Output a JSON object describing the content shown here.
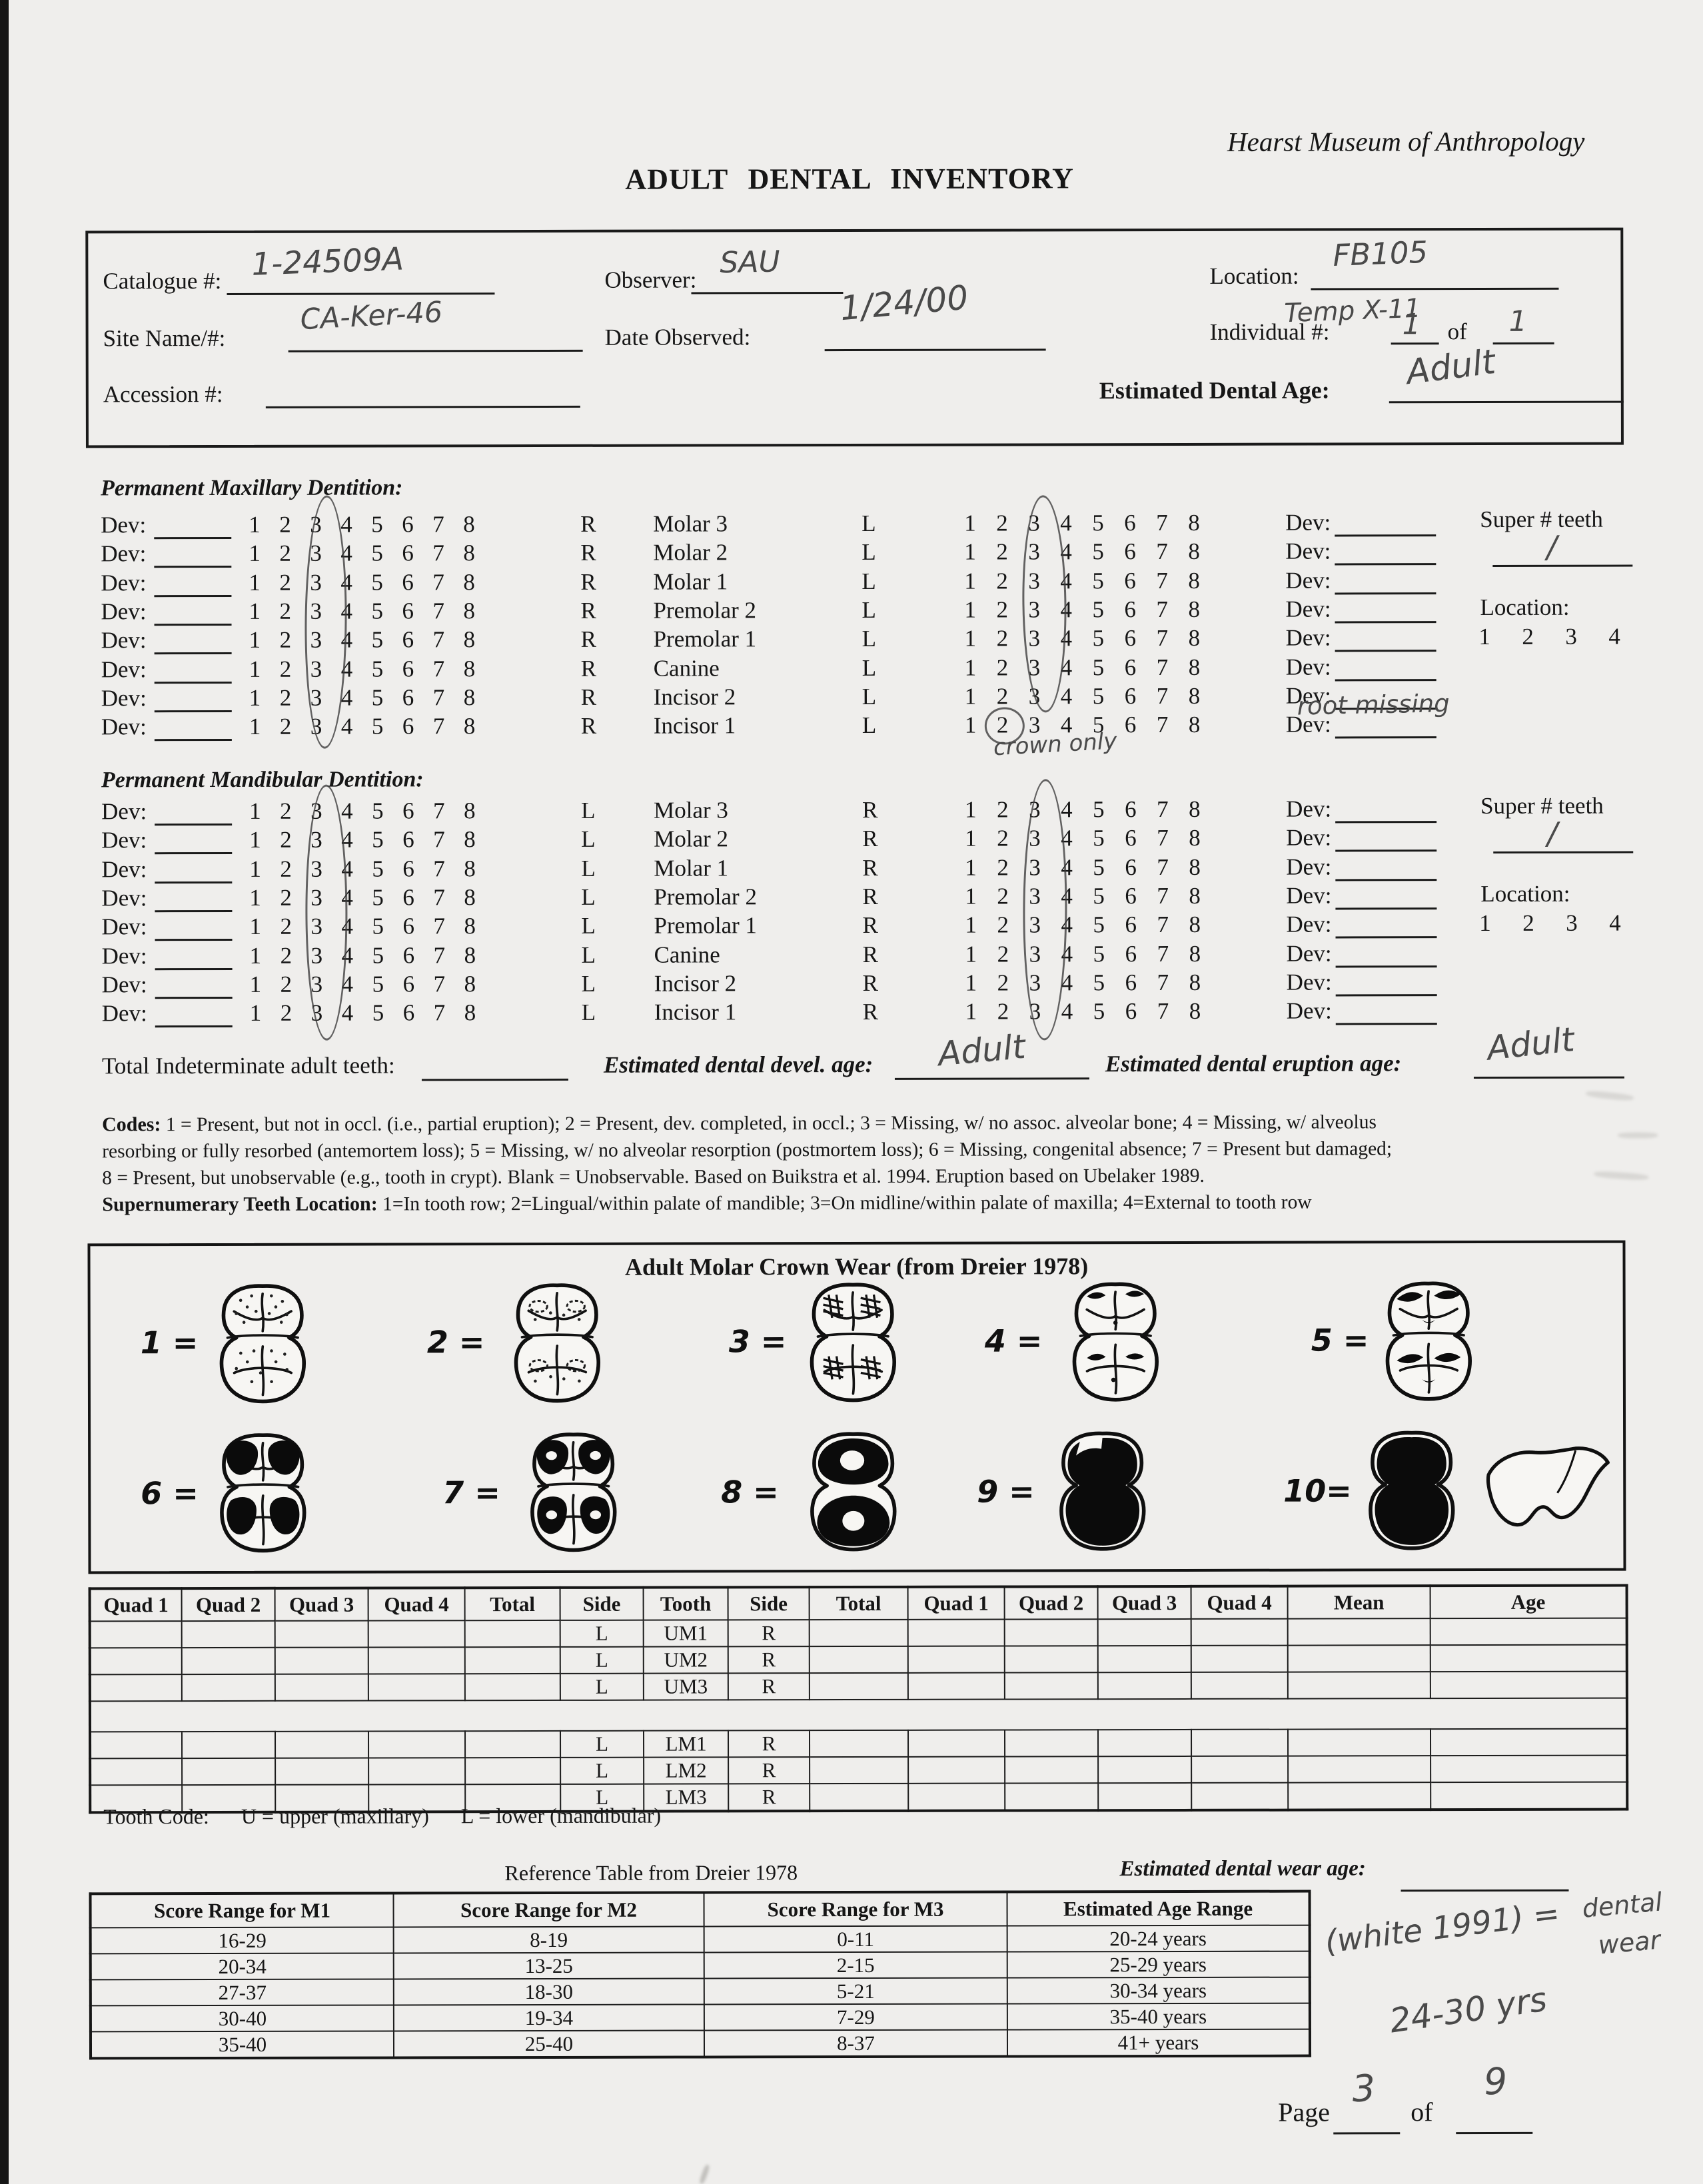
{
  "header": {
    "museum": "Hearst Museum of Anthropology",
    "title": "ADULT DENTAL INVENTORY"
  },
  "info": {
    "catalogue_label": "Catalogue #:",
    "observer_label": "Observer:",
    "location_label": "Location:",
    "site_label": "Site Name/#:",
    "date_label": "Date Observed:",
    "individual_label": "Individual #:",
    "of_label": "of",
    "accession_label": "Accession #:",
    "dental_age_label": "Estimated Dental Age:"
  },
  "handwriting": {
    "catalogue": "1-24509A",
    "observer": "SAU",
    "location": "FB105",
    "location2": "Temp X-11",
    "site": "CA-Ker-46",
    "date": "1/24/00",
    "individual": "1",
    "individual_total": "1",
    "dental_age": "Adult",
    "devel_age": "Adult",
    "eruption_age": "Adult",
    "super_maxillary": "/",
    "super_mandibular": "/",
    "incisor1_dev_note": "root missing",
    "crown_only_note": "crown only",
    "wear_ref_note": "(white 1991) =",
    "wear_word1": "dental",
    "wear_word2": "wear",
    "wear_range": "24-30 yrs",
    "page_number": "3",
    "page_total": "9"
  },
  "dentition": {
    "maxillary_heading": "Permanent Maxillary Dentition:",
    "mandibular_heading": "Permanent Mandibular Dentition:",
    "dev_label": "Dev:",
    "numbers": [
      "1",
      "2",
      "3",
      "4",
      "5",
      "6",
      "7",
      "8"
    ],
    "teeth": [
      "Molar 3",
      "Molar 2",
      "Molar 1",
      "Premolar 2",
      "Premolar 1",
      "Canine",
      "Incisor 2",
      "Incisor 1"
    ],
    "maxillary_sides": [
      "R",
      "L"
    ],
    "mandibular_sides": [
      "L",
      "R"
    ],
    "super_label": "Super # teeth",
    "location_label": "Location:",
    "location_numbers": [
      "1",
      "2",
      "3",
      "4"
    ]
  },
  "totals": {
    "indeterminate_label": "Total Indeterminate adult teeth:",
    "devel_label": "Estimated dental devel. age:",
    "eruption_label": "Estimated dental eruption age:"
  },
  "codes": {
    "label": "Codes:",
    "line1": "1 = Present, but not in occl. (i.e., partial eruption); 2 = Present, dev. completed, in occl.; 3 = Missing, w/ no assoc. alveolar bone; 4 = Missing, w/ alveolus",
    "line2": "resorbing or fully resorbed (antemortem loss); 5 = Missing, w/ no alveolar resorption (postmortem loss); 6 = Missing, congenital absence; 7 = Present but damaged;",
    "line3": "8 = Present, but unobservable (e.g., tooth in crypt).  Blank = Unobservable.  Based on Buikstra et al. 1994.  Eruption based on Ubelaker 1989.",
    "super_label": "Supernumerary Teeth Location:",
    "line4": "1=In tooth row; 2=Lingual/within palate of mandible; 3=On midline/within palate of maxilla; 4=External to tooth row"
  },
  "wear_box": {
    "title": "Adult Molar Crown Wear (from Dreier 1978)",
    "stages": [
      "1 =",
      "2 =",
      "3 =",
      "4 =",
      "5 =",
      "6 =",
      "7 =",
      "8 =",
      "9 =",
      "10="
    ]
  },
  "wear_table": {
    "headers": [
      "Quad 1",
      "Quad 2",
      "Quad 3",
      "Quad 4",
      "Total",
      "Side",
      "Tooth",
      "Side",
      "Total",
      "Quad 1",
      "Quad 2",
      "Quad 3",
      "Quad 4",
      "Mean",
      "Age"
    ],
    "upper_rows": [
      [
        "",
        "",
        "",
        "",
        "",
        "L",
        "UM1",
        "R",
        "",
        "",
        "",
        "",
        "",
        "",
        ""
      ],
      [
        "",
        "",
        "",
        "",
        "",
        "L",
        "UM2",
        "R",
        "",
        "",
        "",
        "",
        "",
        "",
        ""
      ],
      [
        "",
        "",
        "",
        "",
        "",
        "L",
        "UM3",
        "R",
        "",
        "",
        "",
        "",
        "",
        "",
        ""
      ]
    ],
    "lower_rows": [
      [
        "",
        "",
        "",
        "",
        "",
        "L",
        "LM1",
        "R",
        "",
        "",
        "",
        "",
        "",
        "",
        ""
      ],
      [
        "",
        "",
        "",
        "",
        "",
        "L",
        "LM2",
        "R",
        "",
        "",
        "",
        "",
        "",
        "",
        ""
      ],
      [
        "",
        "",
        "",
        "",
        "",
        "L",
        "LM3",
        "R",
        "",
        "",
        "",
        "",
        "",
        "",
        ""
      ]
    ]
  },
  "tooth_code": {
    "label": "Tooth Code:",
    "upper": "U = upper (maxillary)",
    "lower": "L = lower (mandibular)"
  },
  "reference": {
    "title": "Reference Table from Dreier 1978",
    "wear_age_label": "Estimated dental wear age:"
  },
  "reference_table": {
    "headers": [
      "Score Range for M1",
      "Score Range for M2",
      "Score Range for M3",
      "Estimated Age Range"
    ],
    "rows": [
      [
        "16-29",
        "8-19",
        "0-11",
        "20-24 years"
      ],
      [
        "20-34",
        "13-25",
        "2-15",
        "25-29 years"
      ],
      [
        "27-37",
        "18-30",
        "5-21",
        "30-34 years"
      ],
      [
        "30-40",
        "19-34",
        "7-29",
        "35-40 years"
      ],
      [
        "35-40",
        "25-40",
        "8-37",
        "41+ years"
      ]
    ]
  },
  "footer": {
    "page_label": "Page",
    "of_label": "of"
  }
}
